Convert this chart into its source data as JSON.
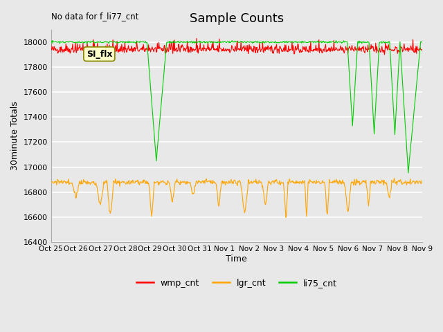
{
  "title": "Sample Counts",
  "no_data_label": "No data for f_li77_cnt",
  "xlabel": "Time",
  "ylabel": "30minute Totals",
  "ylim": [
    16400,
    18100
  ],
  "bg_color": "#e8e8e8",
  "grid_color": "#ffffff",
  "legend_labels": [
    "wmp_cnt",
    "lgr_cnt",
    "li75_cnt"
  ],
  "legend_colors": [
    "#ff0000",
    "#ffa500",
    "#00cc00"
  ],
  "annotation_text": "SI_flx",
  "xtick_labels": [
    "Oct 25",
    "Oct 26",
    "Oct 27",
    "Oct 28",
    "Oct 29",
    "Oct 30",
    "Oct 31",
    "Nov 1",
    "Nov 2",
    "Nov 3",
    "Nov 4",
    "Nov 5",
    "Nov 6",
    "Nov 7",
    "Nov 8",
    "Nov 9"
  ],
  "xtick_positions": [
    0,
    24,
    48,
    72,
    96,
    120,
    144,
    168,
    192,
    216,
    240,
    264,
    288,
    312,
    336,
    360
  ],
  "yticks": [
    16400,
    16600,
    16800,
    17000,
    17200,
    17400,
    17600,
    17800,
    18000
  ]
}
